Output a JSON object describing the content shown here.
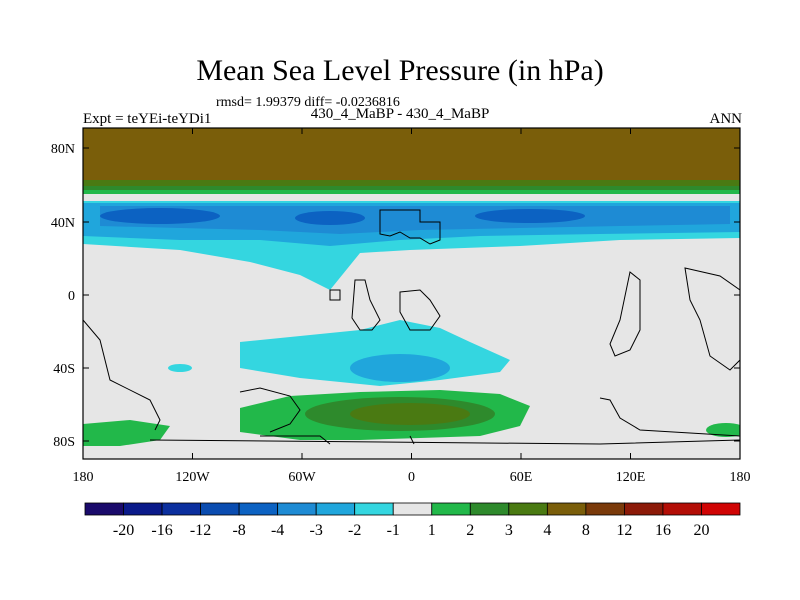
{
  "title": "Mean Sea Level Pressure (in hPa)",
  "stats": "rmsd= 1.99379 diff= -0.0236816",
  "subtitle_left": "Expt = teYEi-teYDi1",
  "subtitle_center": "430_4_MaBP - 430_4_MaBP",
  "subtitle_right": "ANN",
  "axes": {
    "x_ticks": [
      "180",
      "120W",
      "60W",
      "0",
      "60E",
      "120E",
      "180"
    ],
    "y_ticks": [
      "80N",
      "40N",
      "0",
      "40S",
      "80S"
    ]
  },
  "colors": {
    "land_fill": "#e6e6e6",
    "coast": "#000000"
  },
  "colorbar": {
    "colors": [
      "#1a0a6b",
      "#0a1a8a",
      "#0b2f9e",
      "#0a4cb0",
      "#0c62c2",
      "#1e8bd4",
      "#20a6dc",
      "#34d6e0",
      "#e6e6e6",
      "#22b84a",
      "#2e8a2c",
      "#4a7a12",
      "#7a5e0a",
      "#7a3a0a",
      "#8c1a08",
      "#b30e06",
      "#d00404"
    ],
    "labels": [
      "-20",
      "-16",
      "-12",
      "-8",
      "-4",
      "-3",
      "-2",
      "-1",
      "1",
      "2",
      "3",
      "4",
      "8",
      "12",
      "16",
      "20"
    ]
  }
}
